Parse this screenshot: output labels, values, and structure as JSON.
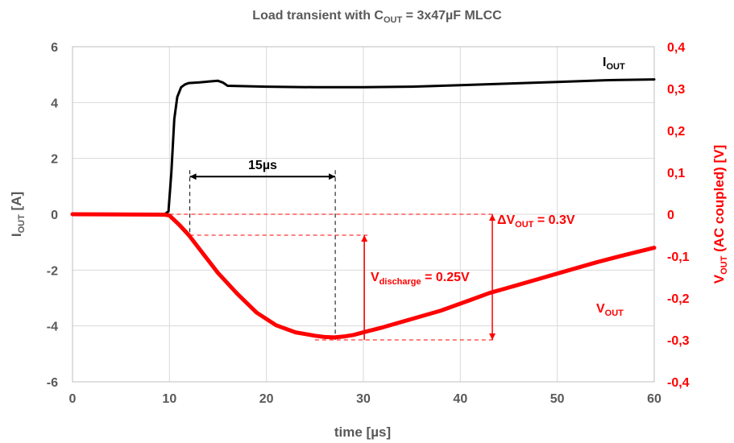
{
  "chart_data": {
    "type": "line",
    "title": {
      "main": "Load transient with C",
      "sub": "OUT",
      "tail": " = 3x47µF MLCC"
    },
    "x_axis": {
      "label": "time  [µs]",
      "min": 0,
      "max": 60,
      "ticks": [
        "0",
        "10",
        "20",
        "30",
        "40",
        "50",
        "60"
      ]
    },
    "y_left": {
      "label_main": "I",
      "label_sub": "OUT",
      "label_tail": "  [A]",
      "min": -6,
      "max": 6,
      "ticks": [
        "-6",
        "-4",
        "-2",
        "0",
        "2",
        "4",
        "6"
      ]
    },
    "y_right": {
      "label_main": "V",
      "label_sub": "OUT",
      "label_tail": " (AC coupled)  [V]",
      "min": -0.4,
      "max": 0.4,
      "ticks": [
        "-0,4",
        "-0,3",
        "-0,2",
        "-0,1",
        "0",
        "0,1",
        "0,2",
        "0,3",
        "0,4"
      ]
    },
    "grid": true,
    "series": [
      {
        "name": "I_OUT",
        "axis": "left",
        "color": "#000000",
        "x": [
          0,
          9.5,
          9.9,
          10.2,
          10.5,
          10.8,
          11.2,
          11.6,
          12,
          13,
          14,
          15,
          15.5,
          16,
          20,
          25,
          30,
          35,
          40,
          45,
          50,
          55,
          60
        ],
        "y": [
          0,
          0,
          0.1,
          1.5,
          3.4,
          4.2,
          4.55,
          4.65,
          4.7,
          4.72,
          4.75,
          4.78,
          4.72,
          4.6,
          4.57,
          4.55,
          4.55,
          4.57,
          4.62,
          4.68,
          4.74,
          4.8,
          4.83
        ]
      },
      {
        "name": "V_OUT",
        "axis": "right",
        "color": "#ff0000",
        "x": [
          0,
          9.5,
          10,
          11,
          12,
          13,
          15,
          17,
          19,
          21,
          23,
          25,
          26,
          27,
          28,
          29,
          30,
          32,
          35,
          38,
          41,
          43,
          45,
          48,
          51,
          54,
          57,
          60
        ],
        "y": [
          0,
          -0.001,
          -0.003,
          -0.025,
          -0.05,
          -0.08,
          -0.14,
          -0.19,
          -0.235,
          -0.265,
          -0.282,
          -0.29,
          -0.293,
          -0.294,
          -0.292,
          -0.288,
          -0.282,
          -0.27,
          -0.25,
          -0.23,
          -0.205,
          -0.188,
          -0.175,
          -0.155,
          -0.135,
          -0.115,
          -0.097,
          -0.08
        ]
      }
    ],
    "legend_labels": [
      {
        "series": "I_OUT",
        "main": "I",
        "sub": "OUT",
        "color": "#000000"
      },
      {
        "series": "V_OUT",
        "main": "V",
        "sub": "OUT",
        "color": "#ff0000"
      }
    ],
    "annotations": {
      "delay": {
        "text": "15µs",
        "x_start": 12.1,
        "x_end": 27.1,
        "y_left": 1.35
      },
      "v_discharge": {
        "main": "V",
        "sub": "discharge",
        "tail": " = 0.25V",
        "x": 30.1,
        "y_top_v": -0.05,
        "y_bottom_v": -0.3
      },
      "delta_vout": {
        "main": "ΔV",
        "sub": "OUT",
        "tail": " = 0.3V",
        "x": 43.3,
        "y_top_v": 0,
        "y_bottom_v": -0.3
      }
    }
  }
}
